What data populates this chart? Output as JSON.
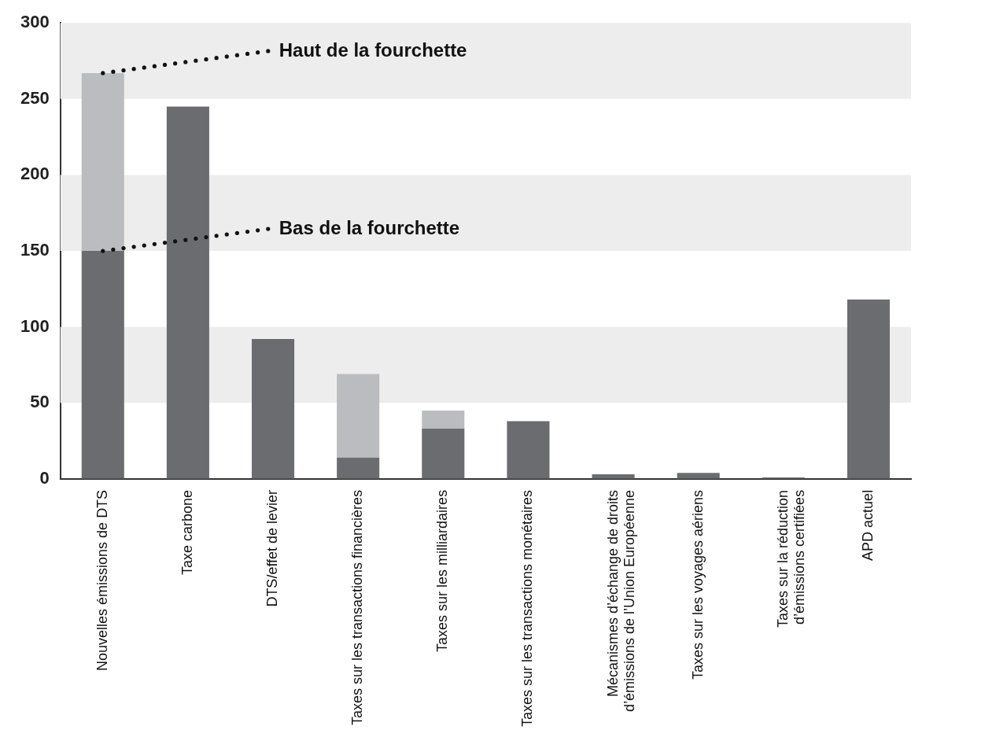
{
  "chart_data": {
    "type": "bar",
    "stacked": true,
    "categories": [
      "Nouvelles émissions de DTS",
      "Taxe carbone",
      "DTS/effet de levier",
      "Taxes sur les transactions financières",
      "Taxes sur les milliardaires",
      "Taxes sur les transactions monétaires",
      "Mécanismes d’échange de droits\nd’émissions de l’Union Européenne",
      "Taxes sur les voyages aériens",
      "Taxes sur la réduction\nd’émissions certifiées",
      "APD actuel"
    ],
    "series": [
      {
        "color": "#6b6c70",
        "values": [
          150,
          245,
          92,
          14,
          33,
          38,
          3,
          4,
          1,
          118
        ]
      },
      {
        "color": "#bbbcc0",
        "values": [
          117,
          null,
          null,
          55,
          12,
          null,
          null,
          null,
          null,
          null
        ]
      }
    ],
    "ylim": [
      0,
      300
    ],
    "yticks": [
      0,
      50,
      100,
      150,
      200,
      250,
      300
    ],
    "grid": false,
    "legend": false,
    "bands": [
      {
        "axis": "y",
        "from": 50,
        "to": 100,
        "color": "#ededed"
      },
      {
        "axis": "y",
        "from": 150,
        "to": 200,
        "color": "#ededed"
      },
      {
        "axis": "y",
        "from": 250,
        "to": 300,
        "color": "#ededed"
      }
    ],
    "annotations": [
      "Haut de la fourchette",
      "Bas de la fourchette"
    ]
  }
}
